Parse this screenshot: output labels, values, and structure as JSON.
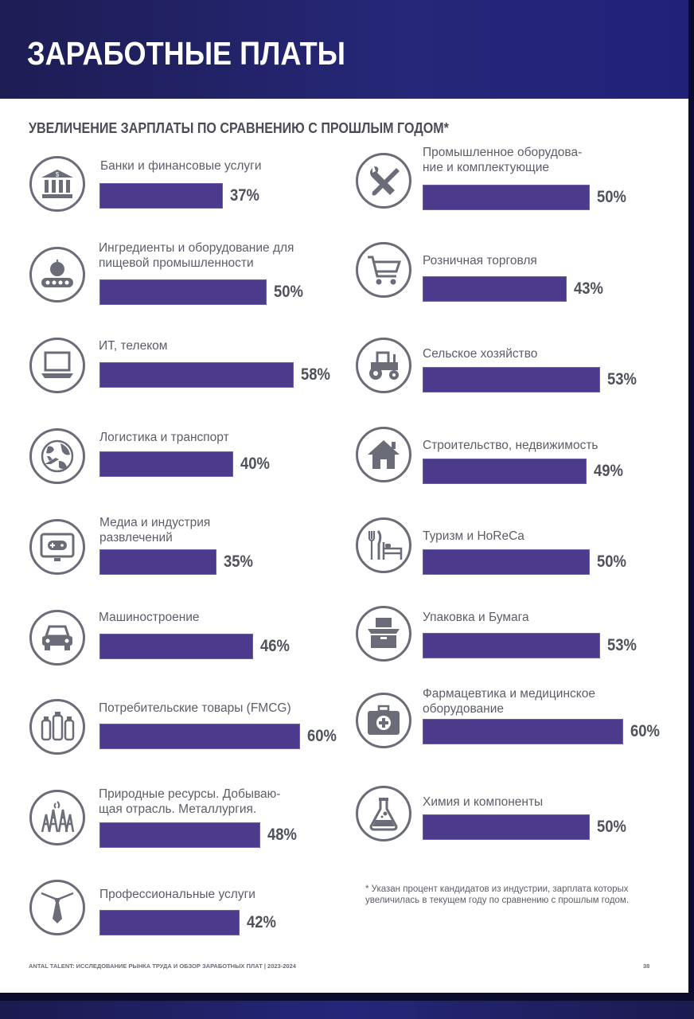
{
  "header": {
    "title": "ЗАРАБОТНЫЕ ПЛАТЫ"
  },
  "subtitle": "УВЕЛИЧЕНИЕ ЗАРПЛАТЫ ПО СРАВНЕНИЮ С ПРОШЛЫМ ГОДОМ*",
  "colors": {
    "bar": "#4e3a8c",
    "header": "#262778",
    "text": "#5b5e68",
    "icon": "#6a6d78"
  },
  "chart_data": {
    "type": "bar",
    "title": "УВЕЛИЧЕНИЕ ЗАРПЛАТЫ ПО СРАВНЕНИЮ С ПРОШЛЫМ ГОДОМ*",
    "unit": "%",
    "xlim": [
      0,
      100
    ],
    "items": [
      {
        "label": [
          "Банки и финансовые услуги"
        ],
        "value": 37,
        "value_label": "37%",
        "icon": "bank-icon"
      },
      {
        "label": [
          "Ингредиенты и оборудование для",
          "пищевой промышленности"
        ],
        "value": 50,
        "value_label": "50%",
        "icon": "food-conveyor-icon"
      },
      {
        "label": [
          "ИТ, телеком"
        ],
        "value": 58,
        "value_label": "58%",
        "icon": "laptop-icon"
      },
      {
        "label": [
          "Логистика и транспорт"
        ],
        "value": 40,
        "value_label": "40%",
        "icon": "globe-plane-icon"
      },
      {
        "label": [
          "Медиа и индустрия",
          "развлечений"
        ],
        "value": 35,
        "value_label": "35%",
        "icon": "tv-gamepad-icon"
      },
      {
        "label": [
          "Машиностроение"
        ],
        "value": 46,
        "value_label": "46%",
        "icon": "car-icon"
      },
      {
        "label": [
          "Потребительские товары (FMCG)"
        ],
        "value": 60,
        "value_label": "60%",
        "icon": "bottles-icon"
      },
      {
        "label": [
          "Природные ресурсы. Добываю-",
          "щая отрасль. Металлургия."
        ],
        "value": 48,
        "value_label": "48%",
        "icon": "oil-rig-icon"
      },
      {
        "label": [
          "Профессиональные услуги"
        ],
        "value": 42,
        "value_label": "42%",
        "icon": "tie-icon"
      },
      {
        "label": [
          "Промышленное оборудова-",
          "ние и комплектующие"
        ],
        "value": 50,
        "value_label": "50%",
        "icon": "wrench-screwdriver-icon"
      },
      {
        "label": [
          "Розничная торговля"
        ],
        "value": 43,
        "value_label": "43%",
        "icon": "shopping-cart-icon"
      },
      {
        "label": [
          "Сельское хозяйство"
        ],
        "value": 53,
        "value_label": "53%",
        "icon": "tractor-icon"
      },
      {
        "label": [
          "Строительство, недвижимость"
        ],
        "value": 49,
        "value_label": "49%",
        "icon": "house-icon"
      },
      {
        "label": [
          "Туризм и HoReCa"
        ],
        "value": 50,
        "value_label": "50%",
        "icon": "fork-knife-bed-icon"
      },
      {
        "label": [
          "Упаковка и Бумага"
        ],
        "value": 53,
        "value_label": "53%",
        "icon": "box-icon"
      },
      {
        "label": [
          "Фармацевтика и медицинское",
          "оборудование"
        ],
        "value": 60,
        "value_label": "60%",
        "icon": "medical-kit-icon"
      },
      {
        "label": [
          "Химия и компоненты"
        ],
        "value": 50,
        "value_label": "50%",
        "icon": "flask-icon"
      }
    ]
  },
  "footnote": [
    "* Указан процент кандидатов из индустрии, зарплата которых",
    "увеличилась в текущем году по сравнению с прошлым годом."
  ],
  "footer": {
    "source": "ANTAL TALENT: ИССЛЕДОВАНИЕ РЫНКА ТРУДА И ОБЗОР ЗАРАБОТНЫХ ПЛАТ | 2023-2024",
    "page": "38"
  }
}
